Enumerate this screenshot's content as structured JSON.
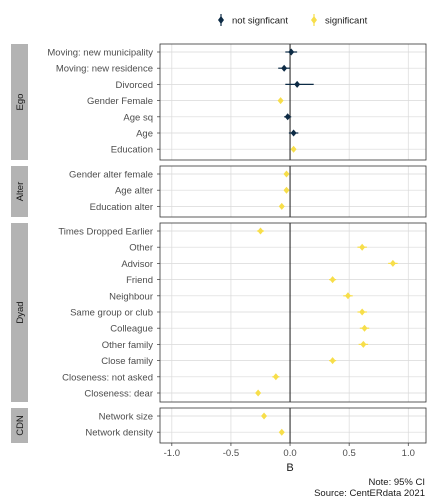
{
  "chart_data": {
    "type": "scatter",
    "subtype": "coefficient-plot-with-confidence-intervals",
    "xlabel": "B",
    "xlim": [
      -1.1,
      1.15
    ],
    "xticks": [
      "-1.0",
      "-0.5",
      "0.0",
      "0.5",
      "1.0"
    ],
    "xtick_values": [
      -1.0,
      -0.5,
      0.0,
      0.5,
      1.0
    ],
    "reference_line": 0,
    "grid": true,
    "legend": {
      "placement": "top-center",
      "entries": [
        {
          "name": "not signficant",
          "color": "#0d2b45"
        },
        {
          "name": "significant",
          "color": "#f7de4a"
        }
      ]
    },
    "colors": {
      "not_significant": "#0d2b45",
      "significant": "#f7de4a",
      "strip": "#b3b3b3"
    },
    "panels": [
      {
        "name": "Ego",
        "rows": [
          {
            "label": "Moving: new municipality",
            "b": 0.01,
            "lo": -0.04,
            "hi": 0.06,
            "significant": false
          },
          {
            "label": "Moving: new residence",
            "b": -0.05,
            "lo": -0.1,
            "hi": 0.0,
            "significant": false
          },
          {
            "label": "Divorced",
            "b": 0.06,
            "lo": -0.04,
            "hi": 0.2,
            "significant": false
          },
          {
            "label": "Gender Female",
            "b": -0.08,
            "lo": -0.1,
            "hi": -0.06,
            "significant": true
          },
          {
            "label": "Age sq",
            "b": -0.02,
            "lo": -0.05,
            "hi": 0.01,
            "significant": false
          },
          {
            "label": "Age",
            "b": 0.03,
            "lo": -0.01,
            "hi": 0.07,
            "significant": false
          },
          {
            "label": "Education",
            "b": 0.03,
            "lo": 0.02,
            "hi": 0.04,
            "significant": true
          }
        ]
      },
      {
        "name": "Alter",
        "rows": [
          {
            "label": "Gender alter female",
            "b": -0.03,
            "lo": -0.05,
            "hi": -0.01,
            "significant": true
          },
          {
            "label": "Age alter",
            "b": -0.03,
            "lo": -0.05,
            "hi": -0.01,
            "significant": true
          },
          {
            "label": "Education alter",
            "b": -0.07,
            "lo": -0.09,
            "hi": -0.05,
            "significant": true
          }
        ]
      },
      {
        "name": "Dyad",
        "rows": [
          {
            "label": "Times Dropped Earlier",
            "b": -0.25,
            "lo": -0.28,
            "hi": -0.22,
            "significant": true
          },
          {
            "label": "Other",
            "b": 0.61,
            "lo": 0.57,
            "hi": 0.65,
            "significant": true
          },
          {
            "label": "Advisor",
            "b": 0.87,
            "lo": 0.83,
            "hi": 0.91,
            "significant": true
          },
          {
            "label": "Friend",
            "b": 0.36,
            "lo": 0.33,
            "hi": 0.39,
            "significant": true
          },
          {
            "label": "Neighbour",
            "b": 0.49,
            "lo": 0.45,
            "hi": 0.53,
            "significant": true
          },
          {
            "label": "Same group or club",
            "b": 0.61,
            "lo": 0.57,
            "hi": 0.65,
            "significant": true
          },
          {
            "label": "Colleague",
            "b": 0.63,
            "lo": 0.59,
            "hi": 0.67,
            "significant": true
          },
          {
            "label": "Other family",
            "b": 0.62,
            "lo": 0.58,
            "hi": 0.66,
            "significant": true
          },
          {
            "label": "Close family",
            "b": 0.36,
            "lo": 0.33,
            "hi": 0.39,
            "significant": true
          },
          {
            "label": "Closeness: not asked",
            "b": -0.12,
            "lo": -0.15,
            "hi": -0.09,
            "significant": true
          },
          {
            "label": "Closeness: dear",
            "b": -0.27,
            "lo": -0.29,
            "hi": -0.25,
            "significant": true
          }
        ]
      },
      {
        "name": "CDN",
        "rows": [
          {
            "label": "Network size",
            "b": -0.22,
            "lo": -0.24,
            "hi": -0.2,
            "significant": true
          },
          {
            "label": "Network density",
            "b": -0.07,
            "lo": -0.09,
            "hi": -0.05,
            "significant": true
          }
        ]
      }
    ],
    "caption": [
      "Note: 95% CI",
      "Source: CentERdata 2021"
    ]
  }
}
